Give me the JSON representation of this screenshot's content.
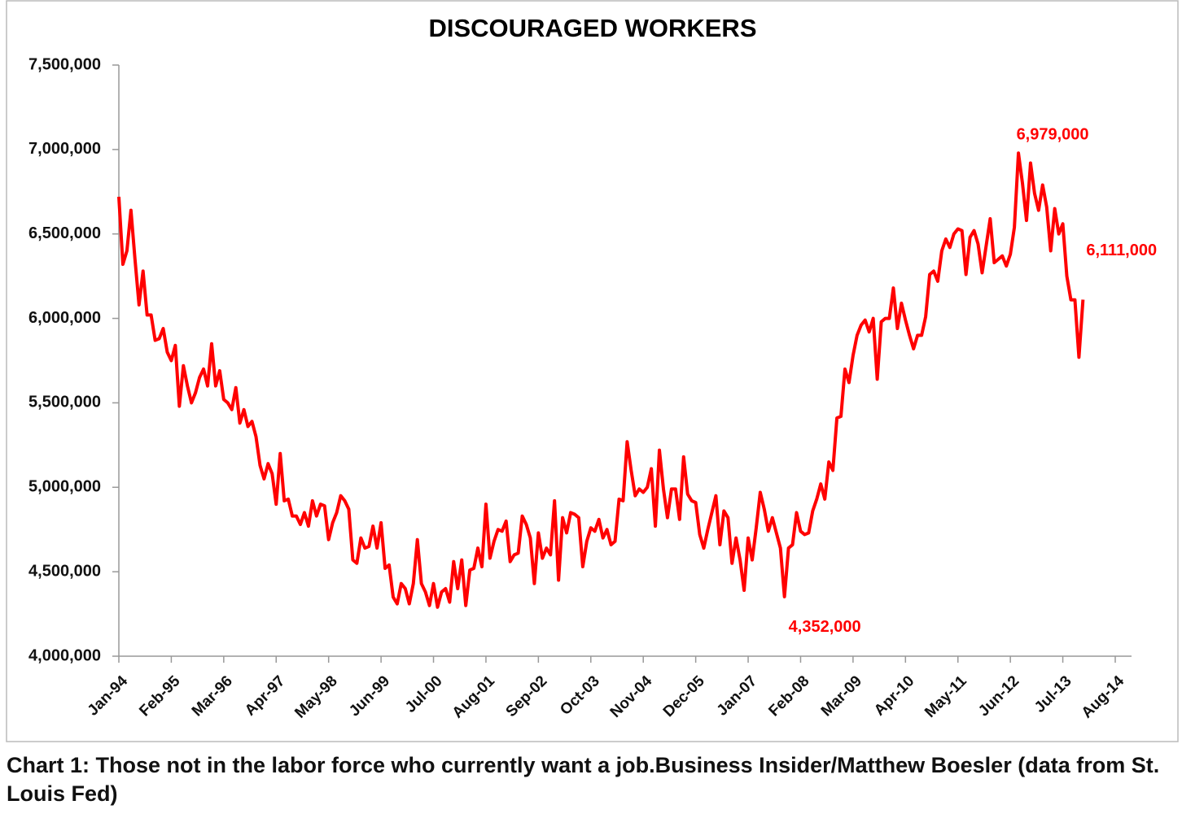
{
  "chart_data": {
    "type": "line",
    "title": "DISCOURAGED WORKERS",
    "color": "#ff0000",
    "categories": [
      "Jan-94",
      null,
      null,
      null,
      null,
      null,
      null,
      null,
      null,
      null,
      null,
      null,
      null,
      "Feb-95",
      null,
      null,
      null,
      null,
      null,
      null,
      null,
      null,
      null,
      null,
      null,
      null,
      "Mar-96",
      null,
      null,
      null,
      null,
      null,
      null,
      null,
      null,
      null,
      null,
      null,
      null,
      "Apr-97",
      null,
      null,
      null,
      null,
      null,
      null,
      null,
      null,
      null,
      null,
      null,
      null,
      "May-98",
      null,
      null,
      null,
      null,
      null,
      null,
      null,
      null,
      null,
      null,
      null,
      null,
      "Jun-99",
      null,
      null,
      null,
      null,
      null,
      null,
      null,
      null,
      null,
      null,
      null,
      null,
      "Jul-00",
      null,
      null,
      null,
      null,
      null,
      null,
      null,
      null,
      null,
      null,
      null,
      null,
      "Aug-01",
      null,
      null,
      null,
      null,
      null,
      null,
      null,
      null,
      null,
      null,
      null,
      null,
      "Sep-02",
      null,
      null,
      null,
      null,
      null,
      null,
      null,
      null,
      null,
      null,
      null,
      null,
      "Oct-03",
      null,
      null,
      null,
      null,
      null,
      null,
      null,
      null,
      null,
      null,
      null,
      null,
      "Nov-04",
      null,
      null,
      null,
      null,
      null,
      null,
      null,
      null,
      null,
      null,
      null,
      null,
      "Dec-05",
      null,
      null,
      null,
      null,
      null,
      null,
      null,
      null,
      null,
      null,
      null,
      null,
      "Jan-07",
      null,
      null,
      null,
      null,
      null,
      null,
      null,
      null,
      null,
      null,
      null,
      null,
      "Feb-08",
      null,
      null,
      null,
      null,
      null,
      null,
      null,
      null,
      null,
      null,
      null,
      null,
      "Mar-09",
      null,
      null,
      null,
      null,
      null,
      null,
      null,
      null,
      null,
      null,
      null,
      null,
      "Apr-10",
      null,
      null,
      null,
      null,
      null,
      null,
      null,
      null,
      null,
      null,
      null,
      null,
      "May-11",
      null,
      null,
      null,
      null,
      null,
      null,
      null,
      null,
      null,
      null,
      null,
      null,
      "Jun-12",
      null,
      null,
      null,
      null,
      null,
      null,
      null,
      null,
      null,
      null,
      null,
      null,
      "Jul-13",
      null,
      null,
      null,
      null,
      null,
      null,
      null,
      null,
      null,
      null,
      null,
      null,
      "Aug-14"
    ],
    "values": [
      6720000,
      6320000,
      6400000,
      6640000,
      6350000,
      6080000,
      6280000,
      6020000,
      6020000,
      5870000,
      5880000,
      5940000,
      5800000,
      5750000,
      5840000,
      5480000,
      5720000,
      5600000,
      5500000,
      5560000,
      5650000,
      5700000,
      5600000,
      5850000,
      5600000,
      5690000,
      5520000,
      5500000,
      5460000,
      5590000,
      5380000,
      5460000,
      5360000,
      5390000,
      5300000,
      5130000,
      5050000,
      5140000,
      5080000,
      4900000,
      5200000,
      4920000,
      4930000,
      4830000,
      4830000,
      4780000,
      4850000,
      4770000,
      4920000,
      4830000,
      4900000,
      4890000,
      4690000,
      4790000,
      4850000,
      4950000,
      4920000,
      4870000,
      4570000,
      4550000,
      4700000,
      4640000,
      4650000,
      4770000,
      4640000,
      4790000,
      4520000,
      4540000,
      4350000,
      4310000,
      4430000,
      4400000,
      4310000,
      4430000,
      4690000,
      4430000,
      4380000,
      4300000,
      4430000,
      4290000,
      4380000,
      4400000,
      4320000,
      4560000,
      4400000,
      4570000,
      4300000,
      4510000,
      4520000,
      4640000,
      4530000,
      4900000,
      4580000,
      4680000,
      4750000,
      4740000,
      4800000,
      4560000,
      4600000,
      4610000,
      4830000,
      4780000,
      4700000,
      4430000,
      4730000,
      4580000,
      4640000,
      4600000,
      4920000,
      4450000,
      4820000,
      4730000,
      4850000,
      4840000,
      4820000,
      4530000,
      4680000,
      4760000,
      4740000,
      4810000,
      4700000,
      4750000,
      4660000,
      4680000,
      4930000,
      4920000,
      5270000,
      5100000,
      4950000,
      4990000,
      4970000,
      5000000,
      5110000,
      4770000,
      5220000,
      4990000,
      4820000,
      4990000,
      4990000,
      4810000,
      5180000,
      4960000,
      4920000,
      4910000,
      4720000,
      4640000,
      4750000,
      4850000,
      4950000,
      4660000,
      4860000,
      4820000,
      4550000,
      4700000,
      4570000,
      4390000,
      4700000,
      4570000,
      4760000,
      4970000,
      4870000,
      4740000,
      4820000,
      4730000,
      4640000,
      4352000,
      4640000,
      4660000,
      4850000,
      4740000,
      4720000,
      4730000,
      4860000,
      4930000,
      5020000,
      4930000,
      5150000,
      5100000,
      5410000,
      5420000,
      5700000,
      5620000,
      5780000,
      5900000,
      5960000,
      5990000,
      5920000,
      6000000,
      5640000,
      5980000,
      6000000,
      6000000,
      6180000,
      5940000,
      6090000,
      5990000,
      5900000,
      5820000,
      5900000,
      5900000,
      6010000,
      6260000,
      6280000,
      6220000,
      6400000,
      6470000,
      6420000,
      6500000,
      6530000,
      6520000,
      6260000,
      6480000,
      6520000,
      6440000,
      6270000,
      6430000,
      6590000,
      6330000,
      6350000,
      6370000,
      6310000,
      6380000,
      6540000,
      6979000,
      6800000,
      6580000,
      6920000,
      6740000,
      6640000,
      6790000,
      6660000,
      6400000,
      6650000,
      6500000,
      6560000,
      6250000,
      6110000,
      6110000,
      5770000,
      6111000,
      null,
      null,
      null,
      null,
      null,
      null,
      null,
      null
    ],
    "value_labels": [
      null,
      null,
      null,
      null,
      null,
      null,
      null,
      null,
      null,
      null,
      null,
      null,
      null,
      null,
      null,
      null,
      null,
      null,
      null,
      null,
      null,
      null,
      null,
      null,
      null,
      null,
      null,
      null,
      null,
      null,
      null,
      null,
      null,
      null,
      null,
      null,
      null,
      null,
      null,
      null,
      null,
      null,
      null,
      null,
      null,
      null,
      null,
      null,
      null,
      null,
      null,
      null,
      null,
      null,
      null,
      null,
      null,
      null,
      null,
      null,
      null,
      null,
      null,
      null,
      null,
      null,
      null,
      null,
      null,
      null,
      null,
      null,
      null,
      null,
      null,
      null,
      null,
      null,
      null,
      null,
      null,
      null,
      null,
      null,
      null,
      null,
      null,
      null,
      null,
      null,
      null,
      null,
      null,
      null,
      null,
      null,
      null,
      null,
      null,
      null,
      null,
      null,
      null,
      null,
      null,
      null,
      null,
      null,
      null,
      null,
      null,
      null,
      null,
      null,
      null,
      null,
      null,
      null,
      null,
      null,
      null,
      null,
      null,
      null,
      null,
      null,
      null,
      null,
      null,
      null,
      null,
      null,
      null,
      null,
      null,
      null,
      null,
      null,
      null,
      null,
      null,
      null,
      null,
      null,
      null,
      null,
      null,
      null,
      null,
      null,
      null,
      null,
      null,
      null,
      null,
      null,
      null,
      null,
      null,
      null,
      null,
      null,
      null,
      null,
      null,
      "4,352,000",
      null,
      null,
      null,
      null,
      null,
      null,
      null,
      null,
      null,
      null,
      null,
      null,
      null,
      null,
      null,
      null,
      null,
      null,
      null,
      null,
      null,
      null,
      null,
      null,
      null,
      null,
      null,
      null,
      null,
      null,
      null,
      null,
      null,
      null,
      null,
      null,
      null,
      null,
      null,
      null,
      null,
      null,
      null,
      null,
      null,
      null,
      null,
      null,
      null,
      null,
      null,
      null,
      null,
      null,
      null,
      null,
      null,
      "6,979,000",
      null,
      null,
      null,
      null,
      null,
      null,
      null,
      null,
      null,
      null,
      null,
      null,
      null,
      null,
      null,
      "6,111,000",
      null,
      null,
      null,
      null,
      null,
      null,
      null,
      null
    ],
    "ylim": [
      4000000,
      7500000
    ],
    "yticks": [
      {
        "value": 4000000,
        "label": "4,000,000"
      },
      {
        "value": 4500000,
        "label": "4,500,000"
      },
      {
        "value": 5000000,
        "label": "5,000,000"
      },
      {
        "value": 5500000,
        "label": "5,500,000"
      },
      {
        "value": 6000000,
        "label": "6,000,000"
      },
      {
        "value": 6500000,
        "label": "6,500,000"
      },
      {
        "value": 7000000,
        "label": "7,000,000"
      },
      {
        "value": 7500000,
        "label": "7,500,000"
      }
    ],
    "grid": false
  },
  "caption": "Chart 1: Those not in the labor force who currently want a job.Business Insider/Matthew Boesler (data from St. Louis Fed)"
}
